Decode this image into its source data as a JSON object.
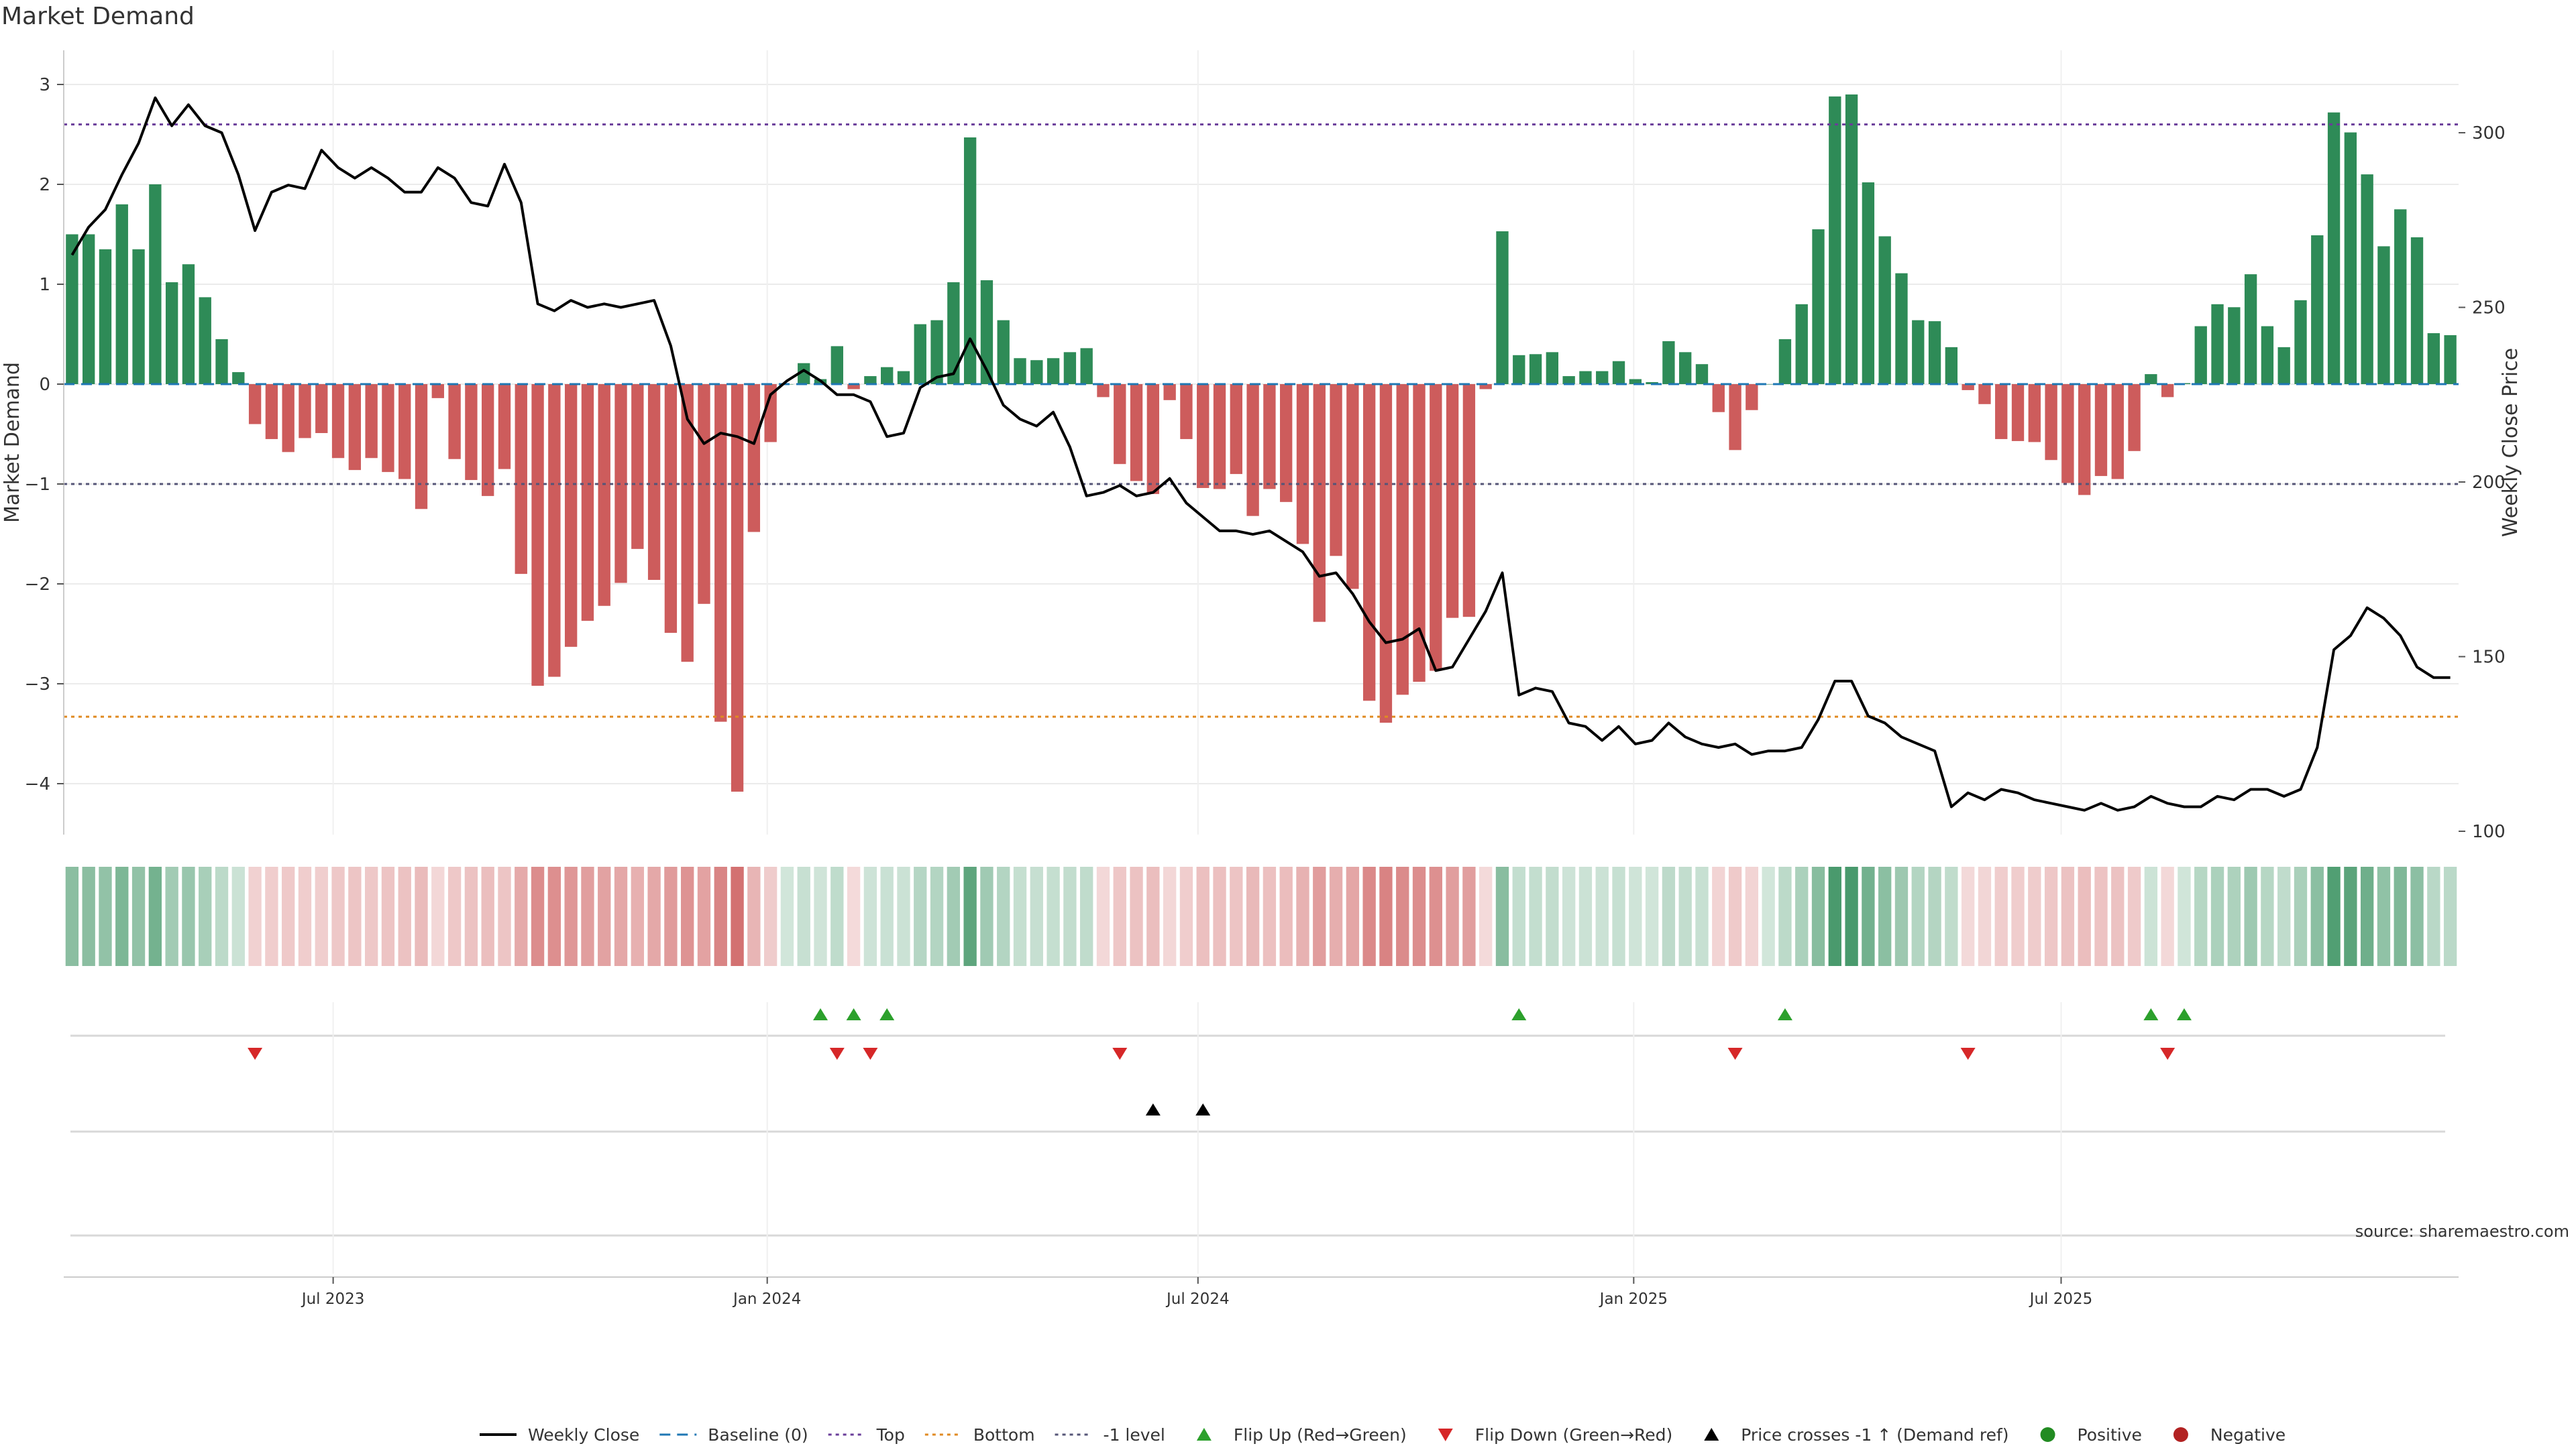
{
  "chart_data": {
    "type": "bar",
    "title": "Market Demand",
    "ylabel": "Market Demand",
    "y2label": "Weekly Close Price",
    "ylim": [
      -4.5,
      3.3
    ],
    "y2lim": [
      100,
      325
    ],
    "yticks": [
      3,
      2,
      1,
      0,
      -1,
      -2,
      -3,
      -4
    ],
    "y2ticks": [
      300,
      250,
      200,
      150,
      100
    ],
    "top_level": 2.6,
    "bottom_level": -3.33,
    "minus_one_level": -1,
    "x_start": "2023-03-10",
    "x_end": "2025-10-17",
    "week_dates_note": "one bar per week starting 2023-03-10",
    "xticks": [
      {
        "label": "Jul 2023",
        "week": 16.2
      },
      {
        "label": "Jan 2024",
        "week": 42.3
      },
      {
        "label": "Jul 2024",
        "week": 68.2
      },
      {
        "label": "Jan 2025",
        "week": 94.4
      },
      {
        "label": "Jul 2025",
        "week": 120.1
      }
    ],
    "demand": [
      1.5,
      1.5,
      1.35,
      1.8,
      1.35,
      2.0,
      1.02,
      1.2,
      0.87,
      0.45,
      0.12,
      -0.4,
      -0.55,
      -0.68,
      -0.54,
      -0.49,
      -0.74,
      -0.86,
      -0.74,
      -0.88,
      -0.95,
      -1.25,
      -0.14,
      -0.75,
      -0.96,
      -1.12,
      -0.85,
      -1.9,
      -3.02,
      -2.93,
      -2.63,
      -2.37,
      -2.22,
      -1.99,
      -1.65,
      -1.96,
      -2.49,
      -2.78,
      -2.2,
      -3.38,
      -4.08,
      -1.48,
      -0.58,
      0.0,
      0.21,
      0.05,
      0.38,
      -0.05,
      0.08,
      0.17,
      0.13,
      0.6,
      0.64,
      1.02,
      2.47,
      1.04,
      0.64,
      0.26,
      0.24,
      0.26,
      0.32,
      0.36,
      -0.13,
      -0.8,
      -0.97,
      -1.1,
      -0.16,
      -0.55,
      -1.04,
      -1.05,
      -0.9,
      -1.32,
      -1.05,
      -1.18,
      -1.6,
      -2.38,
      -1.72,
      -2.05,
      -3.17,
      -3.39,
      -3.11,
      -2.98,
      -2.87,
      -2.34,
      -2.33,
      -0.05,
      1.53,
      0.29,
      0.3,
      0.32,
      0.08,
      0.13,
      0.13,
      0.23,
      0.05,
      0.02,
      0.43,
      0.32,
      0.2,
      -0.28,
      -0.66,
      -0.26,
      0.0,
      0.45,
      0.8,
      1.55,
      2.88,
      2.9,
      2.02,
      1.48,
      1.11,
      0.64,
      0.63,
      0.37,
      -0.06,
      -0.2,
      -0.55,
      -0.57,
      -0.58,
      -0.76,
      -0.99,
      -1.11,
      -0.92,
      -0.95,
      -0.67,
      0.1,
      -0.13,
      0.01,
      0.58,
      0.8,
      0.77,
      1.1,
      0.58,
      0.37,
      0.84,
      1.49,
      2.72,
      2.52,
      2.1,
      1.38,
      1.75,
      1.47,
      0.51,
      0.49
    ],
    "weekly_close": [
      265,
      273,
      278,
      288,
      297,
      310,
      302,
      308,
      302,
      300,
      288,
      272,
      283,
      285,
      284,
      295,
      290,
      287,
      290,
      287,
      283,
      283,
      290,
      287,
      280,
      279,
      291,
      280,
      251,
      249,
      252,
      250,
      251,
      250,
      251,
      252,
      239,
      218,
      211,
      214,
      213,
      211,
      225,
      229,
      232,
      229,
      225,
      225,
      223,
      213,
      214,
      227,
      230,
      231,
      241,
      232,
      222,
      218,
      216,
      220,
      210,
      196,
      197,
      199,
      196,
      197,
      201,
      194,
      190,
      186,
      186,
      185,
      186,
      183,
      180,
      173,
      174,
      168,
      160,
      154,
      155,
      158,
      146,
      147,
      155,
      163,
      174,
      139,
      141,
      140,
      131,
      130,
      126,
      130,
      125,
      126,
      131,
      127,
      125,
      124,
      125,
      122,
      123,
      123,
      124,
      132,
      143,
      143,
      133,
      131,
      127,
      125,
      123,
      107,
      111,
      109,
      112,
      111,
      109,
      108,
      107,
      106,
      108,
      106,
      107,
      110,
      108,
      107,
      107,
      110,
      109,
      112,
      112,
      110,
      112,
      124,
      152,
      156,
      164,
      161,
      156,
      147,
      144,
      144
    ],
    "flip_up_weeks": [
      45,
      47,
      49,
      87,
      103,
      125,
      127
    ],
    "flip_down_weeks": [
      11,
      46,
      48,
      63,
      100,
      114,
      126
    ],
    "price_cross_weeks": [
      65,
      68
    ],
    "series": [
      {
        "name": "Weekly Close",
        "color": "#000000"
      },
      {
        "name": "Baseline (0)",
        "color": "#1f77b4"
      },
      {
        "name": "Top",
        "color": "#6a3d9a"
      },
      {
        "name": "Bottom",
        "color": "#e08a22"
      },
      {
        "name": "-1 level",
        "color": "#555577"
      },
      {
        "name": "Flip Up (Red→Green)",
        "color": "#2ca02c"
      },
      {
        "name": "Flip Down (Green→Red)",
        "color": "#d62728"
      },
      {
        "name": "Price crosses -1 ↑ (Demand ref)",
        "color": "#000000"
      },
      {
        "name": "Positive",
        "color": "#2e8b57"
      },
      {
        "name": "Negative",
        "color": "#cd5c5c"
      }
    ],
    "legend": [
      {
        "label": "Weekly Close",
        "marker": "line",
        "color": "#000000"
      },
      {
        "label": "Baseline (0)",
        "marker": "dash",
        "color": "#1f77b4"
      },
      {
        "label": "Top",
        "marker": "dot",
        "color": "#6a3d9a"
      },
      {
        "label": "Bottom",
        "marker": "dot",
        "color": "#e08a22"
      },
      {
        "label": "-1 level",
        "marker": "dot",
        "color": "#555577"
      },
      {
        "label": "Flip Up (Red→Green)",
        "marker": "tri-up",
        "color": "#2ca02c"
      },
      {
        "label": "Flip Down (Green→Red)",
        "marker": "tri-down",
        "color": "#d62728"
      },
      {
        "label": "Price crosses -1 ↑ (Demand ref)",
        "marker": "tri-up",
        "color": "#000000"
      },
      {
        "label": "Positive",
        "marker": "circle",
        "color": "#228b22"
      },
      {
        "label": "Negative",
        "marker": "circle",
        "color": "#b22222"
      }
    ],
    "legend_position": "bottom-center",
    "source": "source: sharemaestro.com"
  }
}
